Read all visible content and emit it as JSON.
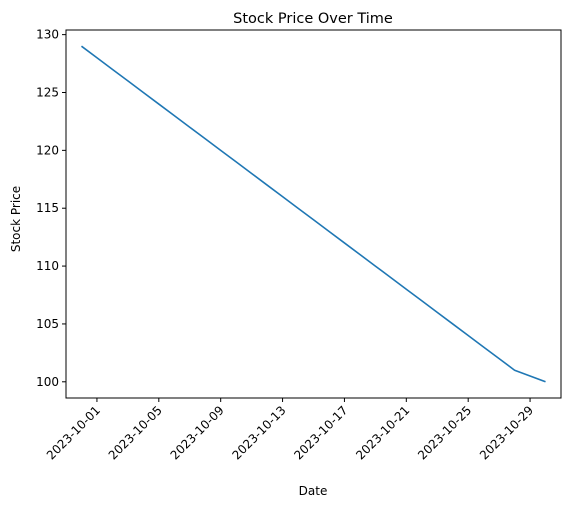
{
  "chart_data": {
    "type": "line",
    "title": "Stock Price Over Time",
    "xlabel": "Date",
    "ylabel": "Stock Price",
    "ylim": [
      98.6,
      130.4
    ],
    "xlim": [
      "2023-09-29",
      "2023-10-31"
    ],
    "x_ticks": [
      "2023-10-01",
      "2023-10-05",
      "2023-10-09",
      "2023-10-13",
      "2023-10-17",
      "2023-10-21",
      "2023-10-25",
      "2023-10-29"
    ],
    "y_ticks": [
      100,
      105,
      110,
      115,
      120,
      125,
      130
    ],
    "grid": false,
    "series_color": "#1f77b4",
    "series": [
      {
        "x": [
          "2023-09-30",
          "2023-10-01",
          "2023-10-02",
          "2023-10-03",
          "2023-10-04",
          "2023-10-05",
          "2023-10-06",
          "2023-10-07",
          "2023-10-08",
          "2023-10-09",
          "2023-10-10",
          "2023-10-11",
          "2023-10-12",
          "2023-10-13",
          "2023-10-14",
          "2023-10-15",
          "2023-10-16",
          "2023-10-17",
          "2023-10-18",
          "2023-10-19",
          "2023-10-20",
          "2023-10-21",
          "2023-10-22",
          "2023-10-23",
          "2023-10-24",
          "2023-10-25",
          "2023-10-26",
          "2023-10-27",
          "2023-10-28",
          "2023-10-29",
          "2023-10-30"
        ],
        "values": [
          129,
          128,
          127,
          126,
          125,
          124,
          123,
          122,
          121,
          120,
          119,
          118,
          117,
          116,
          115,
          114,
          113,
          112,
          111,
          110,
          109,
          108,
          107,
          106,
          105,
          104,
          103,
          102,
          101,
          100.5,
          100
        ]
      }
    ]
  }
}
